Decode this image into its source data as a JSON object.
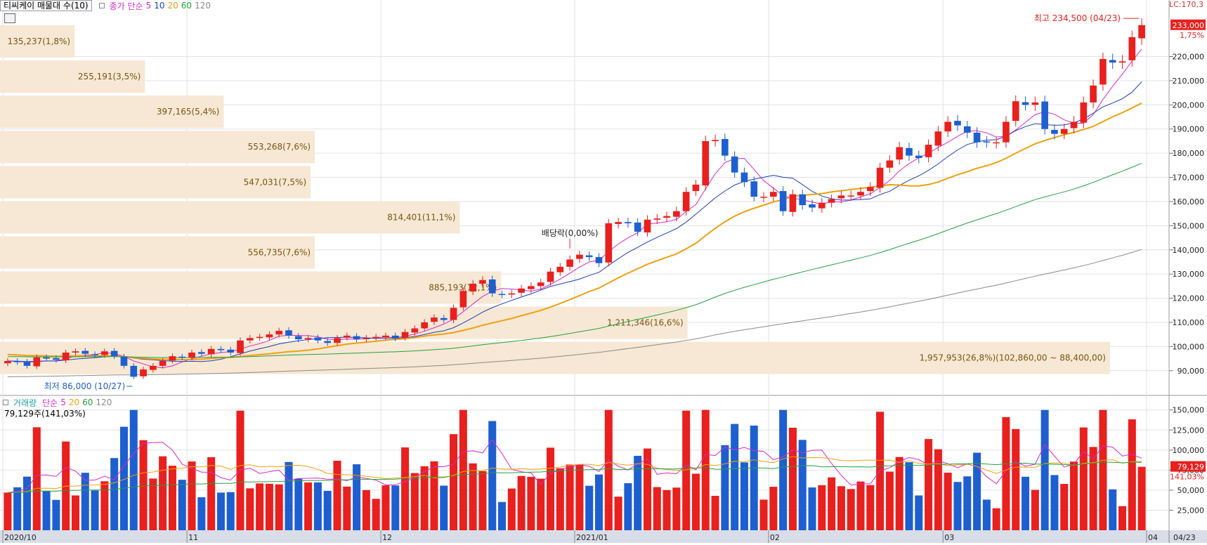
{
  "header": {
    "title": "티씨케이 매물대 수(10)",
    "ma_label": "종가 단순",
    "ma_periods": [
      "5",
      "10",
      "20",
      "60",
      "120"
    ],
    "top_right": "LC:170,3",
    "tool_icon": "grid-icon"
  },
  "volume_header": {
    "label": "거래량",
    "ma_label": "단순",
    "ma_periods": [
      "5",
      "20",
      "60",
      "120"
    ],
    "current": "79,129주(141,03%)"
  },
  "colors": {
    "up": "#e8201e",
    "down": "#1e5fd0",
    "ma5": "#d829c9",
    "ma10": "#1c3fb8",
    "ma20": "#f0a010",
    "ma60": "#25a040",
    "ma120": "#8a8a8a",
    "profile": "#f6e8d4",
    "profile_text": "#7a5410",
    "grid": "#e2e2e2"
  },
  "chart_data": [
    {
      "type": "candlestick",
      "title": "티씨케이 매물대 수(10)",
      "ylim": [
        85000,
        237000
      ],
      "y_ticks": [
        "90,000",
        "100,000",
        "110,000",
        "120,000",
        "130,000",
        "140,000",
        "150,000",
        "160,000",
        "170,000",
        "180,000",
        "190,000",
        "200,000",
        "210,000",
        "220,000"
      ],
      "y_tick_values": [
        90000,
        100000,
        110000,
        120000,
        130000,
        140000,
        150000,
        160000,
        170000,
        180000,
        190000,
        200000,
        210000,
        220000
      ],
      "x_labels": [
        "2020/10",
        "11",
        "12",
        "2021/01",
        "02",
        "03",
        "04"
      ],
      "x_label_index": [
        0,
        19,
        39,
        59,
        79,
        97,
        118
      ],
      "last_date_label": "04/23",
      "current_price_label": "233,000",
      "change_label": "1,75%",
      "closes": [
        94000,
        93500,
        92000,
        95500,
        95000,
        94500,
        97500,
        98000,
        97000,
        96500,
        98000,
        96000,
        92000,
        87500,
        90500,
        92000,
        94000,
        96000,
        95500,
        97500,
        97000,
        99000,
        98500,
        97500,
        102500,
        103500,
        104000,
        105000,
        106500,
        104500,
        103000,
        103500,
        102500,
        101500,
        103500,
        104500,
        103000,
        103500,
        104000,
        104500,
        103500,
        106000,
        107500,
        110000,
        112000,
        111000,
        116000,
        123000,
        126000,
        127500,
        122000,
        121500,
        122000,
        124000,
        125000,
        126500,
        131000,
        133000,
        136000,
        138000,
        137000,
        134500,
        151000,
        151500,
        151000,
        147500,
        152500,
        153000,
        154000,
        156000,
        164000,
        167000,
        185000,
        185500,
        179000,
        172000,
        168000,
        162000,
        162000,
        164000,
        156000,
        163000,
        158500,
        157500,
        159500,
        161000,
        162500,
        162500,
        164000,
        166000,
        174000,
        177000,
        182500,
        179000,
        178000,
        183500,
        189000,
        193000,
        191500,
        188500,
        184500,
        184500,
        184500,
        193000,
        201500,
        200000,
        201000,
        190000,
        188000,
        190000,
        193000,
        201000,
        208000,
        219000,
        217500,
        218000,
        228000,
        233000
      ],
      "volume_ylim": [
        0,
        162000
      ],
      "volume_ticks": [
        "25,000",
        "50,000",
        "75,000",
        "100,000",
        "125,000",
        "150,000"
      ],
      "volume_tick_values": [
        25000,
        50000,
        75000,
        100000,
        125000,
        150000
      ],
      "volume_current_label": "79,129",
      "volume_change_label": "141,03%"
    },
    {
      "type": "volume-profile",
      "bars": [
        {
          "label": "135,237(1,8%)",
          "pct": 1.8
        },
        {
          "label": "255,191(3,5%)",
          "pct": 3.5
        },
        {
          "label": "397,165(5,4%)",
          "pct": 5.4
        },
        {
          "label": "553,268(7,6%)",
          "pct": 7.6
        },
        {
          "label": "547,031(7,5%)",
          "pct": 7.5
        },
        {
          "label": "814,401(11,1%)",
          "pct": 11.1
        },
        {
          "label": "556,735(7,6%)",
          "pct": 7.6
        },
        {
          "label": "885,193(12,1%)",
          "pct": 12.1
        },
        {
          "label": "1,211,346(16,6%)",
          "pct": 16.6
        },
        {
          "label": "1,957,953(26,8%)(102,860,00 ~ 88,400,00)",
          "pct": 26.8
        }
      ]
    }
  ],
  "annotations": {
    "high": "최고 234,500 (04/23)",
    "low": "최저 86,000 (10/27)",
    "dividend": "배당락(0,00%)"
  }
}
